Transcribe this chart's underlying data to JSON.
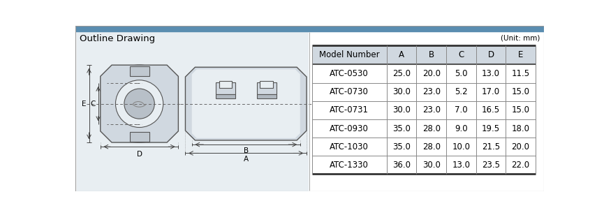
{
  "title": "Outline Drawing",
  "unit_label": "(Unit: mm)",
  "table_header": [
    "Model Number",
    "A",
    "B",
    "C",
    "D",
    "E"
  ],
  "table_rows": [
    [
      "ATC-0530",
      "25.0",
      "20.0",
      "5.0",
      "13.0",
      "11.5"
    ],
    [
      "ATC-0730",
      "30.0",
      "23.0",
      "5.2",
      "17.0",
      "15.0"
    ],
    [
      "ATC-0731",
      "30.0",
      "23.0",
      "7.0",
      "16.5",
      "15.0"
    ],
    [
      "ATC-0930",
      "35.0",
      "28.0",
      "9.0",
      "19.5",
      "18.0"
    ],
    [
      "ATC-1030",
      "35.0",
      "28.0",
      "10.0",
      "21.5",
      "20.0"
    ],
    [
      "ATC-1330",
      "36.0",
      "30.0",
      "13.0",
      "23.5",
      "22.0"
    ]
  ],
  "bg_color": "#ffffff",
  "top_bar_color": "#5a8db0",
  "drawing_bg": "#e8eef2",
  "table_header_bg": "#d0d8e0",
  "body_line_color": "#555555",
  "dim_line_color": "#333333",
  "shape_fill": "#d0d8e0",
  "shape_edge": "#555555",
  "inner_fill": "#e8eef2",
  "dark_fill": "#b0b8c0"
}
